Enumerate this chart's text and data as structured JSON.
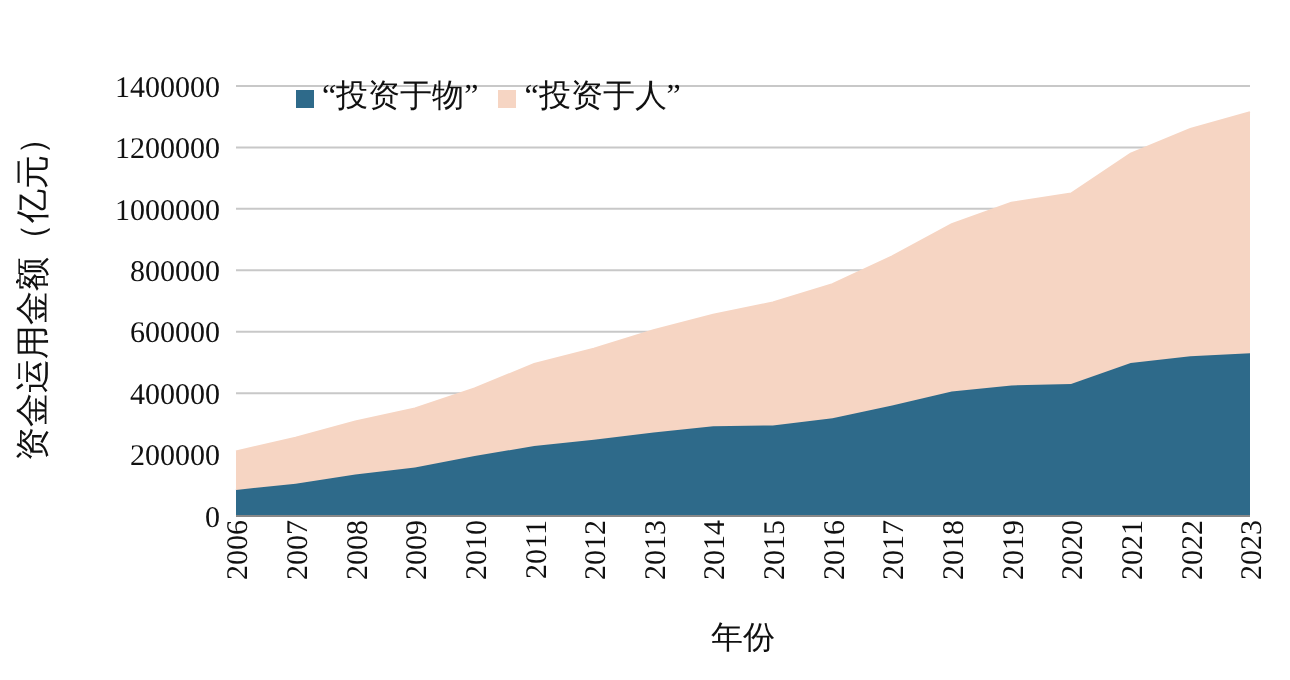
{
  "chart_data": {
    "type": "area",
    "stacked": true,
    "xlabel": "年份",
    "ylabel": "资金运用金额（亿元）",
    "categories": [
      "2006",
      "2007",
      "2008",
      "2009",
      "2010",
      "2011",
      "2012",
      "2013",
      "2014",
      "2015",
      "2016",
      "2017",
      "2018",
      "2019",
      "2020",
      "2021",
      "2022",
      "2023"
    ],
    "series": [
      {
        "name": "“投资于物”",
        "color": "#2e6a8a",
        "values": [
          85000,
          105000,
          135000,
          158000,
          195000,
          228000,
          248000,
          272000,
          292000,
          295000,
          318000,
          360000,
          405000,
          425000,
          430000,
          498000,
          520000,
          530000
        ]
      },
      {
        "name": "“投资于人”",
        "color": "#f6d5c3",
        "values": [
          125000,
          150000,
          173000,
          192000,
          220000,
          267000,
          297000,
          333000,
          363000,
          400000,
          437000,
          485000,
          545000,
          595000,
          620000,
          682000,
          740000,
          785000
        ]
      }
    ],
    "ylim": [
      0,
      1400000
    ],
    "yticks": [
      0,
      200000,
      400000,
      600000,
      800000,
      1000000,
      1200000,
      1400000
    ],
    "grid": "y",
    "legend": "top left"
  }
}
